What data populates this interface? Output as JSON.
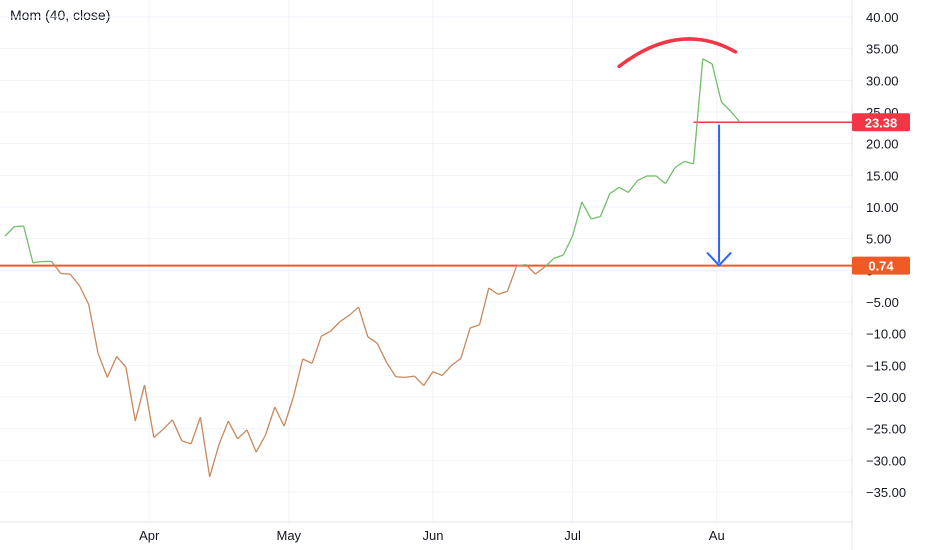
{
  "chart_data": {
    "type": "line",
    "title": "Mom (40, close)",
    "y_ticks": [
      "40.00",
      "35.00",
      "30.00",
      "25.00",
      "20.00",
      "15.00",
      "10.00",
      "5.00",
      "0",
      "−5.00",
      "−10.00",
      "−15.00",
      "−20.00",
      "−25.00",
      "−30.00",
      "−35.00"
    ],
    "y_tick_values": [
      40,
      35,
      30,
      25,
      20,
      15,
      10,
      5,
      0,
      -5,
      -10,
      -15,
      -20,
      -25,
      -30,
      -35
    ],
    "ylim": [
      -40,
      43
    ],
    "x_ticks": [
      {
        "label": "Apr",
        "x": 31
      },
      {
        "label": "May",
        "x": 61
      },
      {
        "label": "Jun",
        "x": 92
      },
      {
        "label": "Jul",
        "x": 122
      },
      {
        "label": "Au",
        "x": 153
      }
    ],
    "xlim": [
      0,
      158
    ],
    "series": [
      {
        "color_above": "#6fbf67",
        "color_below": "#c8885c",
        "points": [
          [
            0,
            5.4
          ],
          [
            2,
            6.9
          ],
          [
            4,
            7.0
          ],
          [
            6,
            1.2
          ],
          [
            8,
            1.4
          ],
          [
            10,
            1.4
          ],
          [
            12,
            -0.5
          ],
          [
            14,
            -0.6
          ],
          [
            16,
            -2.4
          ],
          [
            18,
            -5.4
          ],
          [
            20,
            -13.1
          ],
          [
            22,
            -16.9
          ],
          [
            24,
            -13.6
          ],
          [
            26,
            -15.3
          ],
          [
            28,
            -23.8
          ],
          [
            30,
            -18.1
          ],
          [
            32,
            -26.4
          ],
          [
            34,
            -25.1
          ],
          [
            36,
            -23.6
          ],
          [
            38,
            -26.9
          ],
          [
            40,
            -27.4
          ],
          [
            42,
            -23.2
          ],
          [
            44,
            -32.6
          ],
          [
            46,
            -27.5
          ],
          [
            48,
            -23.8
          ],
          [
            50,
            -26.6
          ],
          [
            52,
            -25.2
          ],
          [
            54,
            -28.7
          ],
          [
            56,
            -26.0
          ],
          [
            58,
            -21.6
          ],
          [
            60,
            -24.6
          ],
          [
            62,
            -20.0
          ],
          [
            64,
            -14.0
          ],
          [
            66,
            -14.7
          ],
          [
            68,
            -10.4
          ],
          [
            70,
            -9.6
          ],
          [
            72,
            -8.1
          ],
          [
            74,
            -7.1
          ],
          [
            76,
            -5.8
          ],
          [
            78,
            -10.5
          ],
          [
            80,
            -11.5
          ],
          [
            82,
            -14.5
          ],
          [
            84,
            -16.8
          ],
          [
            86,
            -16.9
          ],
          [
            88,
            -16.7
          ],
          [
            90,
            -18.2
          ],
          [
            92,
            -16.0
          ],
          [
            94,
            -16.6
          ],
          [
            96,
            -15.0
          ],
          [
            98,
            -13.9
          ],
          [
            100,
            -9.1
          ],
          [
            102,
            -8.6
          ],
          [
            104,
            -2.8
          ],
          [
            106,
            -3.8
          ],
          [
            108,
            -3.3
          ],
          [
            110,
            0.7
          ],
          [
            112,
            0.9
          ],
          [
            114,
            -0.6
          ],
          [
            116,
            0.5
          ],
          [
            118,
            1.9
          ],
          [
            120,
            2.4
          ],
          [
            122,
            5.4
          ],
          [
            124,
            10.8
          ],
          [
            126,
            8.1
          ],
          [
            128,
            8.5
          ],
          [
            130,
            12.1
          ],
          [
            132,
            13.1
          ],
          [
            134,
            12.3
          ],
          [
            136,
            14.2
          ],
          [
            138,
            14.9
          ],
          [
            140,
            14.9
          ],
          [
            142,
            13.7
          ],
          [
            144,
            16.2
          ],
          [
            146,
            17.2
          ],
          [
            148,
            16.8
          ],
          [
            150,
            33.4
          ],
          [
            152,
            32.6
          ],
          [
            154,
            26.6
          ],
          [
            156,
            25.1
          ],
          [
            158,
            23.4
          ]
        ]
      }
    ],
    "levels": [
      {
        "label": "23.38",
        "value": 23.38,
        "color": "#f23645"
      },
      {
        "label": "0.74",
        "value": 0.74,
        "color": "#f05a24"
      }
    ],
    "arrow_color": "#2962ff",
    "arc_color": "#f23645",
    "grid": true,
    "last_label_x": "Au"
  }
}
